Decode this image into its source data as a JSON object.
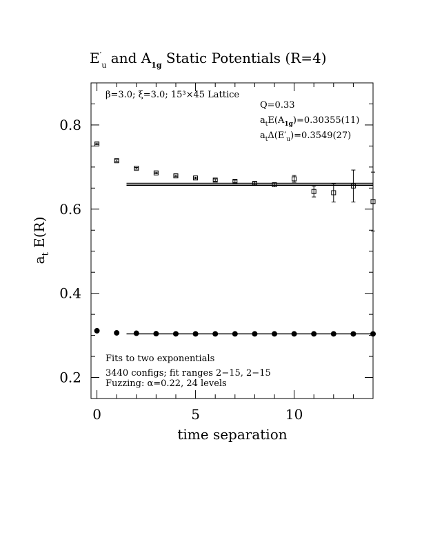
{
  "chart_data": {
    "type": "scatter",
    "title": "E′u and A1g Static Potentials (R=4)",
    "title_parts": {
      "a": "E",
      "a_prime": "′",
      "a_sub": "u",
      "mid": " and A",
      "mid_sub": "1g",
      "rest": " Static Potentials (R=4)"
    },
    "xlabel": "time separation",
    "ylabel": "a",
    "ylabel_sub": "t",
    "ylabel_rest": " E(R)",
    "xlim": [
      -0.3,
      14.0
    ],
    "ylim": [
      0.15,
      0.9
    ],
    "x_ticks": [
      0,
      5,
      10
    ],
    "y_ticks": [
      0.2,
      0.4,
      0.6,
      0.8
    ],
    "x_tick_labels": [
      "0",
      "5",
      "10"
    ],
    "y_tick_labels": [
      "0.2",
      "0.4",
      "0.6",
      "0.8"
    ],
    "grid": false,
    "series": [
      {
        "marker": "open-square",
        "points": [
          {
            "x": 0,
            "y": 0.755,
            "err": 0.002
          },
          {
            "x": 1,
            "y": 0.715,
            "err": 0.002
          },
          {
            "x": 2,
            "y": 0.697,
            "err": 0.002
          },
          {
            "x": 3,
            "y": 0.686,
            "err": 0.002
          },
          {
            "x": 4,
            "y": 0.679,
            "err": 0.002
          },
          {
            "x": 5,
            "y": 0.674,
            "err": 0.002
          },
          {
            "x": 6,
            "y": 0.669,
            "err": 0.003
          },
          {
            "x": 7,
            "y": 0.666,
            "err": 0.003
          },
          {
            "x": 8,
            "y": 0.661,
            "err": 0.004
          },
          {
            "x": 9,
            "y": 0.658,
            "err": 0.005
          },
          {
            "x": 10,
            "y": 0.672,
            "err": 0.008
          },
          {
            "x": 11,
            "y": 0.642,
            "err": 0.013
          },
          {
            "x": 12,
            "y": 0.639,
            "err": 0.022
          },
          {
            "x": 13,
            "y": 0.655,
            "err": 0.038
          },
          {
            "x": 14,
            "y": 0.618,
            "err": 0.07
          }
        ],
        "fit": {
          "x_range": [
            1.5,
            14
          ],
          "center": 0.659,
          "band": 0.0027
        }
      },
      {
        "marker": "filled-circle",
        "points": [
          {
            "x": 0,
            "y": 0.311
          },
          {
            "x": 1,
            "y": 0.306
          },
          {
            "x": 2,
            "y": 0.305
          },
          {
            "x": 3,
            "y": 0.304
          },
          {
            "x": 4,
            "y": 0.3037
          },
          {
            "x": 5,
            "y": 0.3036
          },
          {
            "x": 6,
            "y": 0.3036
          },
          {
            "x": 7,
            "y": 0.3036
          },
          {
            "x": 8,
            "y": 0.3036
          },
          {
            "x": 9,
            "y": 0.3036
          },
          {
            "x": 10,
            "y": 0.3036
          },
          {
            "x": 11,
            "y": 0.3036
          },
          {
            "x": 12,
            "y": 0.3036
          },
          {
            "x": 13,
            "y": 0.3035
          },
          {
            "x": 14,
            "y": 0.3035
          }
        ],
        "fit": {
          "x_range": [
            1.5,
            14
          ],
          "center": 0.30355,
          "band": 0.0003
        }
      }
    ],
    "annotations": {
      "lattice_line": "β=3.0; ξ=3.0; 15³×45 Lattice",
      "q_line": "Q=0.33",
      "energy_line": {
        "pre": "a",
        "pre_sub": "t",
        "mid": "E(A",
        "mid_sub": "1g",
        "rest": ")=0.30355(11)"
      },
      "gap_line": {
        "pre": "a",
        "pre_sub": "t",
        "mid": "Δ(E′",
        "mid_sub": "u",
        "rest": ")=0.3549(27)"
      },
      "fits_line": "Fits to two exponentials",
      "configs_line": "3440 configs; fit ranges 2−15, 2−15",
      "fuzzing_line": "Fuzzing: α=0.22, 24 levels"
    }
  }
}
